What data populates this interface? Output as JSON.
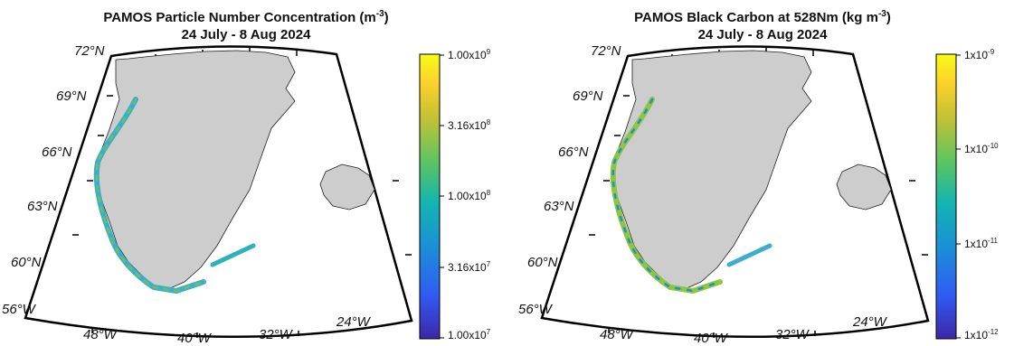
{
  "panels": [
    {
      "title_main": "PAMOS Particle Number Concentration (m",
      "title_exp": "-3",
      "title_close": ")",
      "subtitle": "24 July - 8 Aug 2024",
      "lat_labels": [
        "72°N",
        "69°N",
        "66°N",
        "63°N",
        "60°N"
      ],
      "lon_labels": [
        "56°W",
        "48°W",
        "40°W",
        "32°W",
        "24°W"
      ],
      "colorbar": {
        "scale": "log",
        "range": [
          10000000.0,
          1000000000.0
        ],
        "ticks": [
          {
            "m": "1.00x10",
            "e": "9"
          },
          {
            "m": "3.16x10",
            "e": "8"
          },
          {
            "m": "1.00x10",
            "e": "8"
          },
          {
            "m": "3.16x10",
            "e": "7"
          },
          {
            "m": "1.00x10",
            "e": "7"
          }
        ]
      }
    },
    {
      "title_main": "PAMOS Black Carbon at 528Nm (kg m",
      "title_exp": "-3",
      "title_close": ")",
      "subtitle": "24 July - 8 Aug 2024",
      "lat_labels": [
        "72°N",
        "69°N",
        "66°N",
        "63°N",
        "60°N"
      ],
      "lon_labels": [
        "56°W",
        "48°W",
        "40°W",
        "32°W",
        "24°W"
      ],
      "colorbar": {
        "scale": "log",
        "range": [
          1e-12,
          1e-09
        ],
        "ticks": [
          {
            "m": "1x10",
            "e": "-9"
          },
          {
            "m": "1x10",
            "e": "-10"
          },
          {
            "m": "1x10",
            "e": "-11"
          },
          {
            "m": "1x10",
            "e": "-12"
          }
        ]
      }
    }
  ],
  "colors": {
    "land": "#cdcdcd",
    "ocean": "#ffffff",
    "frame": "#000000",
    "colormap": [
      "#3e26a8",
      "#2f5bf3",
      "#1b8fd7",
      "#13b5b0",
      "#5ac462",
      "#c6c232",
      "#fcd22c",
      "#f9fb15"
    ]
  }
}
